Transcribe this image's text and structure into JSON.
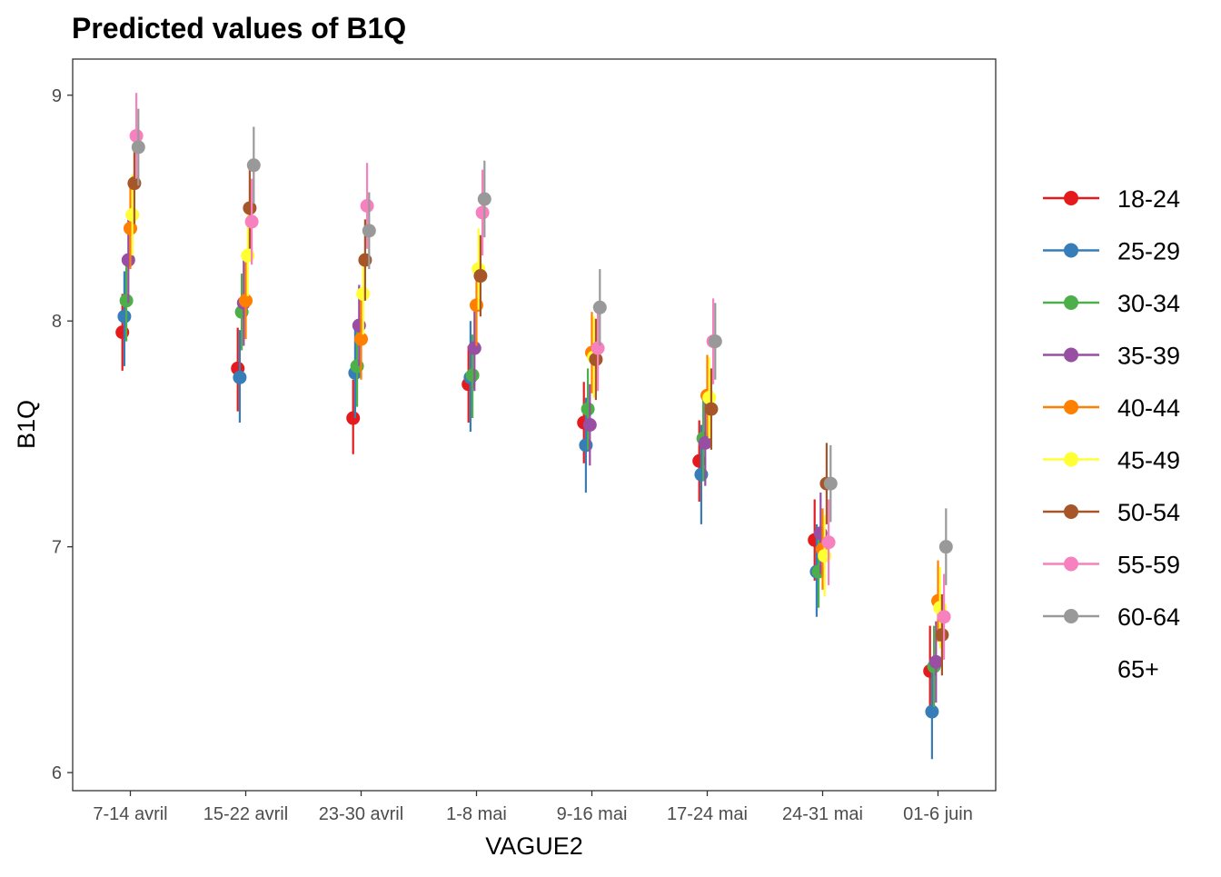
{
  "chart_data": {
    "type": "scatter",
    "title": "Predicted values of B1Q",
    "xlabel": "VAGUE2",
    "ylabel": "B1Q",
    "categories": [
      "7-14 avril",
      "15-22 avril",
      "23-30 avril",
      "1-8 mai",
      "9-16 mai",
      "17-24 mai",
      "24-31 mai",
      "01-6 juin"
    ],
    "ylim": [
      5.92,
      9.16
    ],
    "yticks": [
      6,
      7,
      8,
      9
    ],
    "grid": false,
    "legend_position": "right",
    "error_bars": true,
    "series": [
      {
        "name": "18-24",
        "color": "#e41a1c",
        "values": [
          7.95,
          7.79,
          7.57,
          7.72,
          7.55,
          7.38,
          7.03,
          6.45
        ],
        "lower": [
          7.78,
          7.6,
          7.41,
          7.55,
          7.37,
          7.2,
          6.85,
          6.25
        ],
        "upper": [
          8.12,
          7.97,
          7.74,
          7.89,
          7.73,
          7.56,
          7.21,
          6.65
        ]
      },
      {
        "name": "25-29",
        "color": "#377eb8",
        "values": [
          8.02,
          7.75,
          7.77,
          7.75,
          7.45,
          7.32,
          6.89,
          6.27
        ],
        "lower": [
          7.8,
          7.55,
          7.57,
          7.51,
          7.24,
          7.1,
          6.69,
          6.06
        ],
        "upper": [
          8.22,
          7.96,
          7.98,
          8.0,
          7.66,
          7.54,
          7.1,
          6.49
        ]
      },
      {
        "name": "30-34",
        "color": "#4daf4a",
        "values": [
          8.09,
          8.04,
          7.8,
          7.76,
          7.61,
          7.48,
          6.89,
          6.47
        ],
        "lower": [
          7.91,
          7.87,
          7.62,
          7.57,
          7.43,
          7.29,
          6.73,
          6.29
        ],
        "upper": [
          8.27,
          8.21,
          7.98,
          7.94,
          7.79,
          7.66,
          7.05,
          6.65
        ]
      },
      {
        "name": "35-39",
        "color": "#984ea3",
        "values": [
          8.27,
          8.08,
          7.98,
          7.88,
          7.54,
          7.46,
          7.06,
          6.49
        ],
        "lower": [
          8.08,
          7.89,
          7.8,
          7.69,
          7.36,
          7.27,
          6.88,
          6.31
        ],
        "upper": [
          8.46,
          8.27,
          8.16,
          8.06,
          7.72,
          7.65,
          7.24,
          6.67
        ]
      },
      {
        "name": "40-44",
        "color": "#ff7f00",
        "values": [
          8.41,
          8.09,
          7.92,
          8.07,
          7.86,
          7.67,
          6.99,
          6.76
        ],
        "lower": [
          8.23,
          7.92,
          7.74,
          7.89,
          7.68,
          7.49,
          6.81,
          6.58
        ],
        "upper": [
          8.59,
          8.26,
          8.1,
          8.25,
          8.04,
          7.85,
          7.17,
          6.94
        ]
      },
      {
        "name": "45-49",
        "color": "#ffff33",
        "values": [
          8.47,
          8.29,
          8.12,
          8.23,
          7.84,
          7.66,
          6.96,
          6.73
        ],
        "lower": [
          8.29,
          8.11,
          7.94,
          8.05,
          7.66,
          7.48,
          6.78,
          6.55
        ],
        "upper": [
          8.65,
          8.47,
          8.3,
          8.41,
          8.02,
          7.84,
          7.14,
          6.91
        ]
      },
      {
        "name": "50-54",
        "color": "#a65628",
        "values": [
          8.61,
          8.5,
          8.27,
          8.2,
          7.83,
          7.61,
          7.28,
          6.61
        ],
        "lower": [
          8.43,
          8.32,
          8.09,
          8.02,
          7.65,
          7.43,
          7.1,
          6.43
        ],
        "upper": [
          8.79,
          8.68,
          8.45,
          8.38,
          8.01,
          7.79,
          7.46,
          6.79
        ]
      },
      {
        "name": "55-59",
        "color": "#f781bf",
        "values": [
          8.82,
          8.44,
          8.51,
          8.48,
          7.88,
          7.91,
          7.02,
          6.69
        ],
        "lower": [
          8.63,
          8.25,
          8.32,
          8.29,
          7.69,
          7.72,
          6.83,
          6.5
        ],
        "upper": [
          9.01,
          8.63,
          8.7,
          8.67,
          8.07,
          8.1,
          7.21,
          6.88
        ]
      },
      {
        "name": "60-64",
        "color": "#999999",
        "values": [
          8.77,
          8.69,
          8.4,
          8.54,
          8.06,
          7.91,
          7.28,
          7.0
        ],
        "lower": [
          8.6,
          8.52,
          8.23,
          8.37,
          7.89,
          7.74,
          7.11,
          6.83
        ],
        "upper": [
          8.94,
          8.86,
          8.57,
          8.71,
          8.23,
          8.08,
          7.45,
          7.17
        ]
      },
      {
        "name": "65+",
        "color": "#ffffff",
        "values": [],
        "lower": [],
        "upper": []
      }
    ]
  }
}
